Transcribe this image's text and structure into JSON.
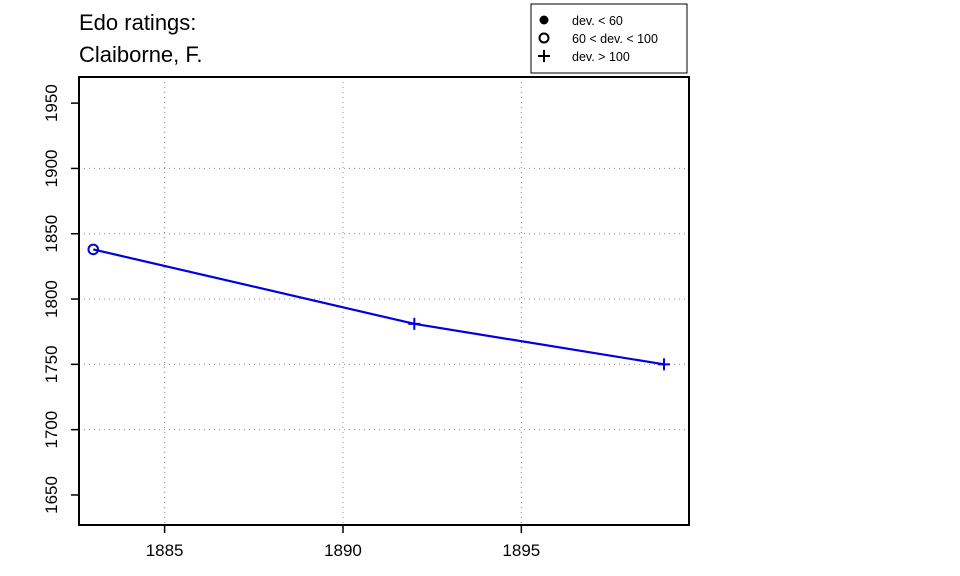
{
  "chart_data": {
    "type": "line",
    "title_lines": [
      "Edo ratings:",
      "Claiborne, F."
    ],
    "xlabel": "",
    "ylabel": "",
    "xlim": [
      1882.6,
      1899.7
    ],
    "ylim": [
      1627,
      1970
    ],
    "x_ticks": [
      1885,
      1890,
      1895
    ],
    "y_ticks": [
      1650,
      1700,
      1750,
      1800,
      1850,
      1900,
      1950
    ],
    "grid": true,
    "legend_position": "top-right",
    "legend": [
      {
        "marker": "filled-circle",
        "label": "dev. < 60"
      },
      {
        "marker": "open-circle",
        "label": "60 < dev. < 100"
      },
      {
        "marker": "plus",
        "label": "dev. > 100"
      }
    ],
    "series": [
      {
        "color": "#0000e0",
        "points": [
          {
            "x": 1883,
            "y": 1838,
            "marker": "open-circle"
          },
          {
            "x": 1892,
            "y": 1781,
            "marker": "plus"
          },
          {
            "x": 1899,
            "y": 1750,
            "marker": "plus"
          }
        ]
      }
    ]
  }
}
